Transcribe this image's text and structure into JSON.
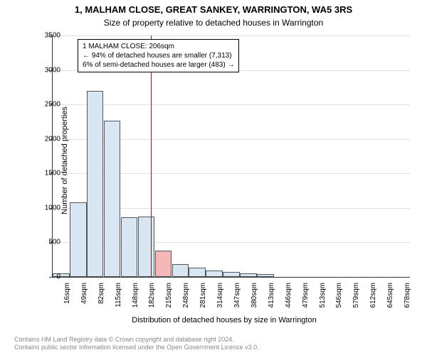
{
  "title": "1, MALHAM CLOSE, GREAT SANKEY, WARRINGTON, WA5 3RS",
  "subtitle": "Size of property relative to detached houses in Warrington",
  "chart": {
    "type": "histogram",
    "ylabel": "Number of detached properties",
    "xlabel": "Distribution of detached houses by size in Warrington",
    "ylim": [
      0,
      3500
    ],
    "ytick_step": 500,
    "yticks": [
      0,
      500,
      1000,
      1500,
      2000,
      2500,
      3000,
      3500
    ],
    "xticks": [
      "16sqm",
      "49sqm",
      "82sqm",
      "115sqm",
      "148sqm",
      "182sqm",
      "215sqm",
      "248sqm",
      "281sqm",
      "314sqm",
      "347sqm",
      "380sqm",
      "413sqm",
      "446sqm",
      "479sqm",
      "513sqm",
      "546sqm",
      "579sqm",
      "612sqm",
      "645sqm",
      "678sqm"
    ],
    "bar_values": [
      50,
      1080,
      2700,
      2260,
      870,
      880,
      380,
      190,
      130,
      90,
      70,
      55,
      40,
      0,
      0,
      0,
      0,
      0,
      0,
      0,
      0
    ],
    "bar_fill": "#d8e6f3",
    "bar_border": "#555555",
    "highlight_index": 6,
    "highlight_fill": "#f5b8b8",
    "refline_x_index": 5.76,
    "refline_color": "#cc0000",
    "grid_color": "#e0e0e0",
    "background_color": "#ffffff"
  },
  "annotation": {
    "line1": "1 MALHAM CLOSE: 206sqm",
    "line2": "← 94% of detached houses are smaller (7,313)",
    "line3": "6% of semi-detached houses are larger (483) →"
  },
  "footer": {
    "line1": "Contains HM Land Registry data © Crown copyright and database right 2024.",
    "line2": "Contains public sector information licensed under the Open Government Licence v3.0."
  }
}
